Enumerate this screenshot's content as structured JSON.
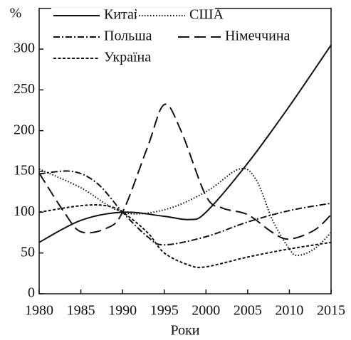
{
  "chart_data": {
    "type": "line",
    "ylabel": "%",
    "xlabel": "Роки",
    "xlim": [
      1980,
      2015
    ],
    "xticks": [
      1980,
      1985,
      1990,
      1995,
      2000,
      2005,
      2010,
      2015
    ],
    "ylim": [
      0,
      350
    ],
    "yticks": [
      0,
      50,
      100,
      150,
      200,
      250,
      300
    ],
    "legend": "upper-left",
    "series": [
      {
        "name": "Китай",
        "color": "#111111",
        "dash": "solid",
        "x": [
          1980,
          1985,
          1990,
          1995,
          1998,
          2000,
          2005,
          2010,
          2015
        ],
        "values": [
          63,
          90,
          100,
          95,
          91,
          100,
          160,
          230,
          305
        ]
      },
      {
        "name": "США",
        "color": "#111111",
        "dash": "dotted",
        "x": [
          1980,
          1985,
          1990,
          1995,
          2000,
          2004,
          2006,
          2008,
          2010,
          2011,
          2013,
          2015
        ],
        "values": [
          153,
          130,
          100,
          103,
          125,
          153,
          140,
          90,
          55,
          47,
          55,
          75
        ]
      },
      {
        "name": "Польша",
        "color": "#111111",
        "dash": "dashdot",
        "x": [
          1980,
          1984,
          1987,
          1990,
          1993,
          1995,
          2000,
          2005,
          2010,
          2015
        ],
        "values": [
          147,
          150,
          135,
          100,
          70,
          60,
          70,
          88,
          102,
          111
        ]
      },
      {
        "name": "Німеччина",
        "color": "#111111",
        "dash": "longdash",
        "x": [
          1980,
          1983,
          1985,
          1988,
          1990,
          1993,
          1995,
          1997,
          2000,
          2002,
          2005,
          2008,
          2010,
          2013,
          2015
        ],
        "values": [
          148,
          100,
          76,
          80,
          100,
          180,
          232,
          200,
          120,
          105,
          97,
          75,
          67,
          78,
          97
        ]
      },
      {
        "name": "Україна",
        "color": "#111111",
        "dash": "shortdash",
        "x": [
          1980,
          1985,
          1988,
          1990,
          1993,
          1995,
          1998,
          2000,
          2005,
          2010,
          2015
        ],
        "values": [
          100,
          108,
          108,
          100,
          75,
          50,
          35,
          33,
          45,
          55,
          63
        ]
      }
    ]
  }
}
